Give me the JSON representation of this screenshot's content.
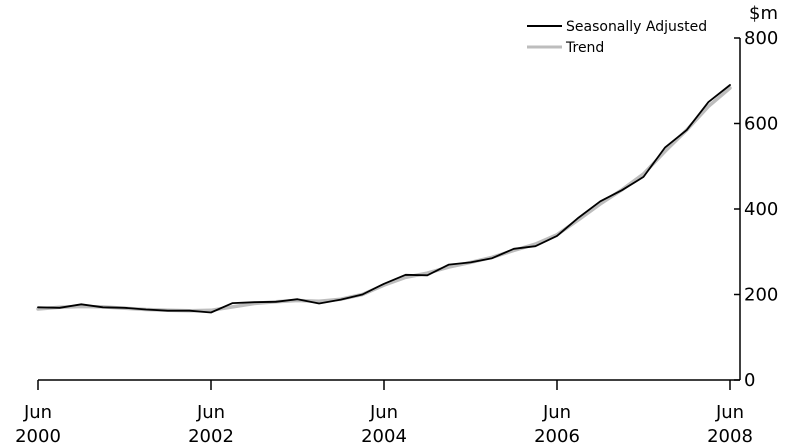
{
  "chart_data": {
    "type": "line",
    "unit": "$m",
    "x": [
      "Jun 2000",
      "Sep 2000",
      "Dec 2000",
      "Mar 2001",
      "Jun 2001",
      "Sep 2001",
      "Dec 2001",
      "Mar 2002",
      "Jun 2002",
      "Sep 2002",
      "Dec 2002",
      "Mar 2003",
      "Jun 2003",
      "Sep 2003",
      "Dec 2003",
      "Mar 2004",
      "Jun 2004",
      "Sep 2004",
      "Dec 2004",
      "Mar 2005",
      "Jun 2005",
      "Sep 2005",
      "Dec 2005",
      "Mar 2006",
      "Jun 2006",
      "Sep 2006",
      "Dec 2006",
      "Mar 2007",
      "Jun 2007",
      "Sep 2007",
      "Dec 2007",
      "Mar 2008",
      "Jun 2008"
    ],
    "x_ticks": [
      {
        "month": "Jun",
        "year": "2000",
        "index": 0
      },
      {
        "month": "Jun",
        "year": "2002",
        "index": 8
      },
      {
        "month": "Jun",
        "year": "2004",
        "index": 16
      },
      {
        "month": "Jun",
        "year": "2006",
        "index": 24
      },
      {
        "month": "Jun",
        "year": "2008",
        "index": 32
      }
    ],
    "y_ticks": [
      "0",
      "200",
      "400",
      "600",
      "800"
    ],
    "ylim": [
      0,
      800
    ],
    "y_axis_side": "right",
    "grid": false,
    "legend": {
      "position": "top-right"
    },
    "series": [
      {
        "name": "Seasonally Adjusted",
        "color": "#000000",
        "values": [
          170,
          169,
          177,
          170,
          169,
          165,
          162,
          162,
          158,
          180,
          182,
          183,
          189,
          179,
          188,
          200,
          225,
          246,
          245,
          270,
          275,
          285,
          307,
          313,
          337,
          380,
          418,
          444,
          475,
          544,
          585,
          650,
          690
        ]
      },
      {
        "name": "Trend",
        "color": "#bdbdbd",
        "values": [
          166,
          170,
          172,
          171,
          168,
          165,
          163,
          162,
          163,
          171,
          179,
          183,
          186,
          184,
          189,
          200,
          222,
          240,
          250,
          264,
          275,
          287,
          303,
          318,
          340,
          375,
          412,
          445,
          482,
          535,
          585,
          640,
          683
        ]
      }
    ]
  }
}
